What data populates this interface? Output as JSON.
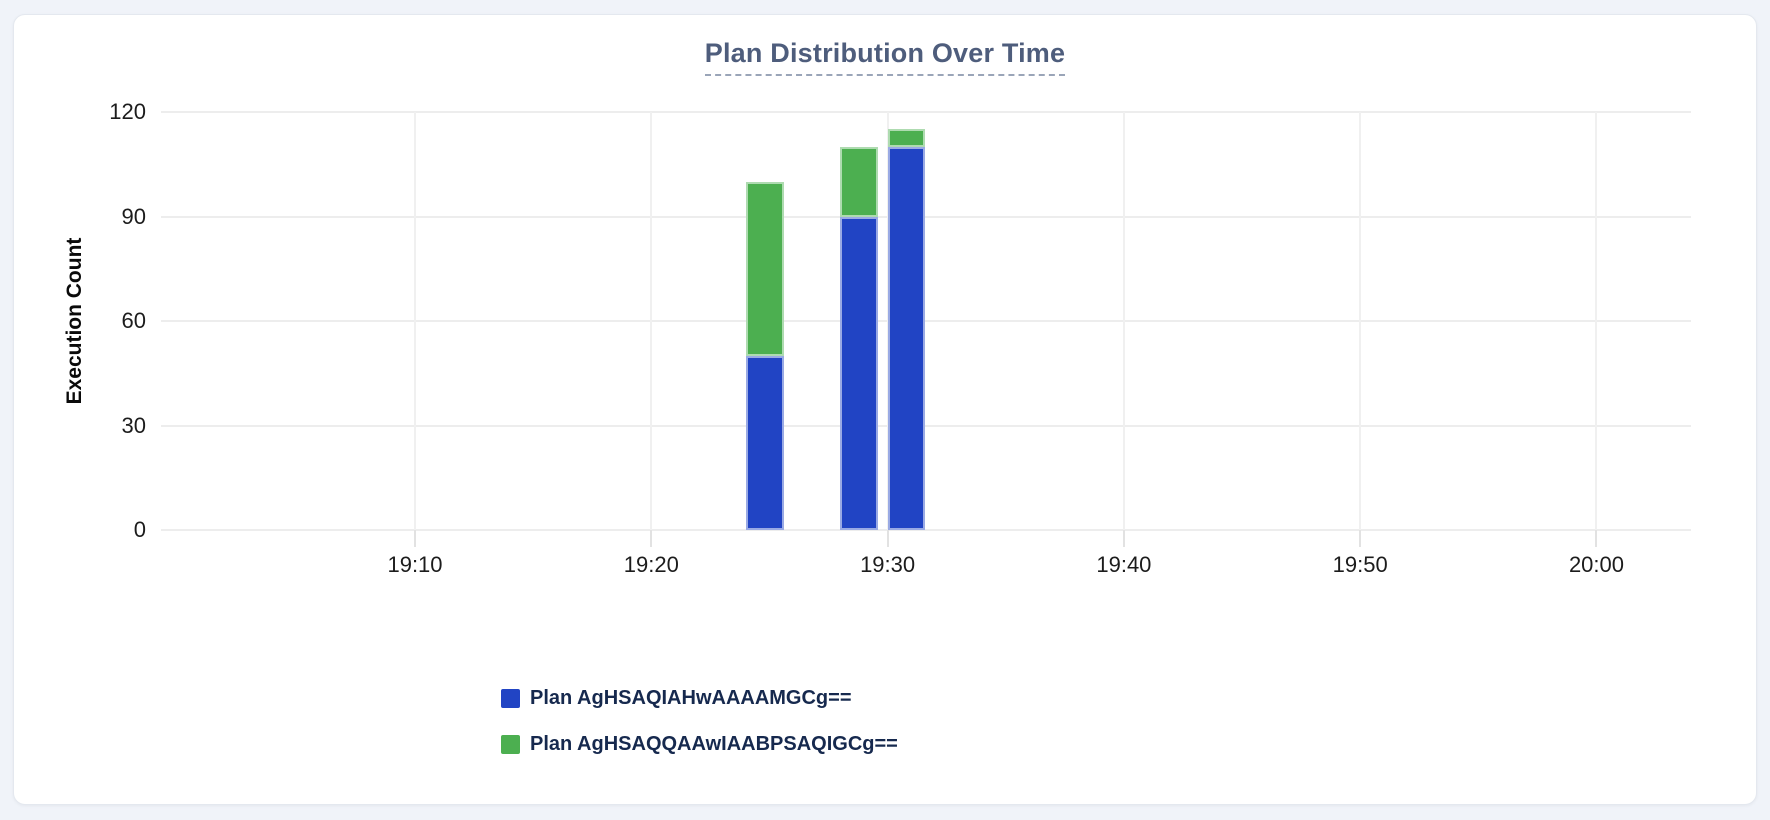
{
  "page": {
    "background": "#f0f3f9"
  },
  "card": {
    "background": "#ffffff",
    "border_color": "#e4e8ef"
  },
  "colors": {
    "series_blue": "#2144c4",
    "series_green": "#4caf50",
    "title_text": "#4e5d7c",
    "legend_text": "#16294e",
    "tick_text": "#1c1c1c",
    "gridline": "#ededed"
  },
  "chart_data": {
    "type": "bar",
    "stacked": true,
    "title": "Plan Distribution Over Time",
    "xlabel": "",
    "ylabel": "Execution Count",
    "ylim": [
      0,
      120
    ],
    "yticks": [
      0,
      30,
      60,
      90,
      120
    ],
    "grid": true,
    "legend_position": "bottom-left",
    "x_axis_unit": "minutes after 19:00",
    "x_range_minutes": [
      -0.75,
      64
    ],
    "x_ticks": [
      {
        "minute": 10,
        "label": "19:10"
      },
      {
        "minute": 20,
        "label": "19:20"
      },
      {
        "minute": 30,
        "label": "19:30"
      },
      {
        "minute": 40,
        "label": "19:40"
      },
      {
        "minute": 50,
        "label": "19:50"
      },
      {
        "minute": 60,
        "label": "20:00"
      }
    ],
    "bar_width_minutes": 1.6,
    "buckets": [
      {
        "time": "19:24",
        "minute": 24
      },
      {
        "time": "19:28",
        "minute": 28
      },
      {
        "time": "19:30",
        "minute": 30
      }
    ],
    "series": [
      {
        "name": "Plan AgHSAQIAHwAAAAMGCg==",
        "color": "#2144c4",
        "values": [
          50,
          90,
          110
        ]
      },
      {
        "name": "Plan AgHSAQQAAwIAABPSAQIGCg==",
        "color": "#4caf50",
        "values": [
          50,
          20,
          5
        ]
      }
    ]
  },
  "legend": {
    "items": [
      {
        "label": "Plan AgHSAQIAHwAAAAMGCg==",
        "color": "#2144c4"
      },
      {
        "label": "Plan AgHSAQQAAwIAABPSAQIGCg==",
        "color": "#4caf50"
      }
    ]
  }
}
